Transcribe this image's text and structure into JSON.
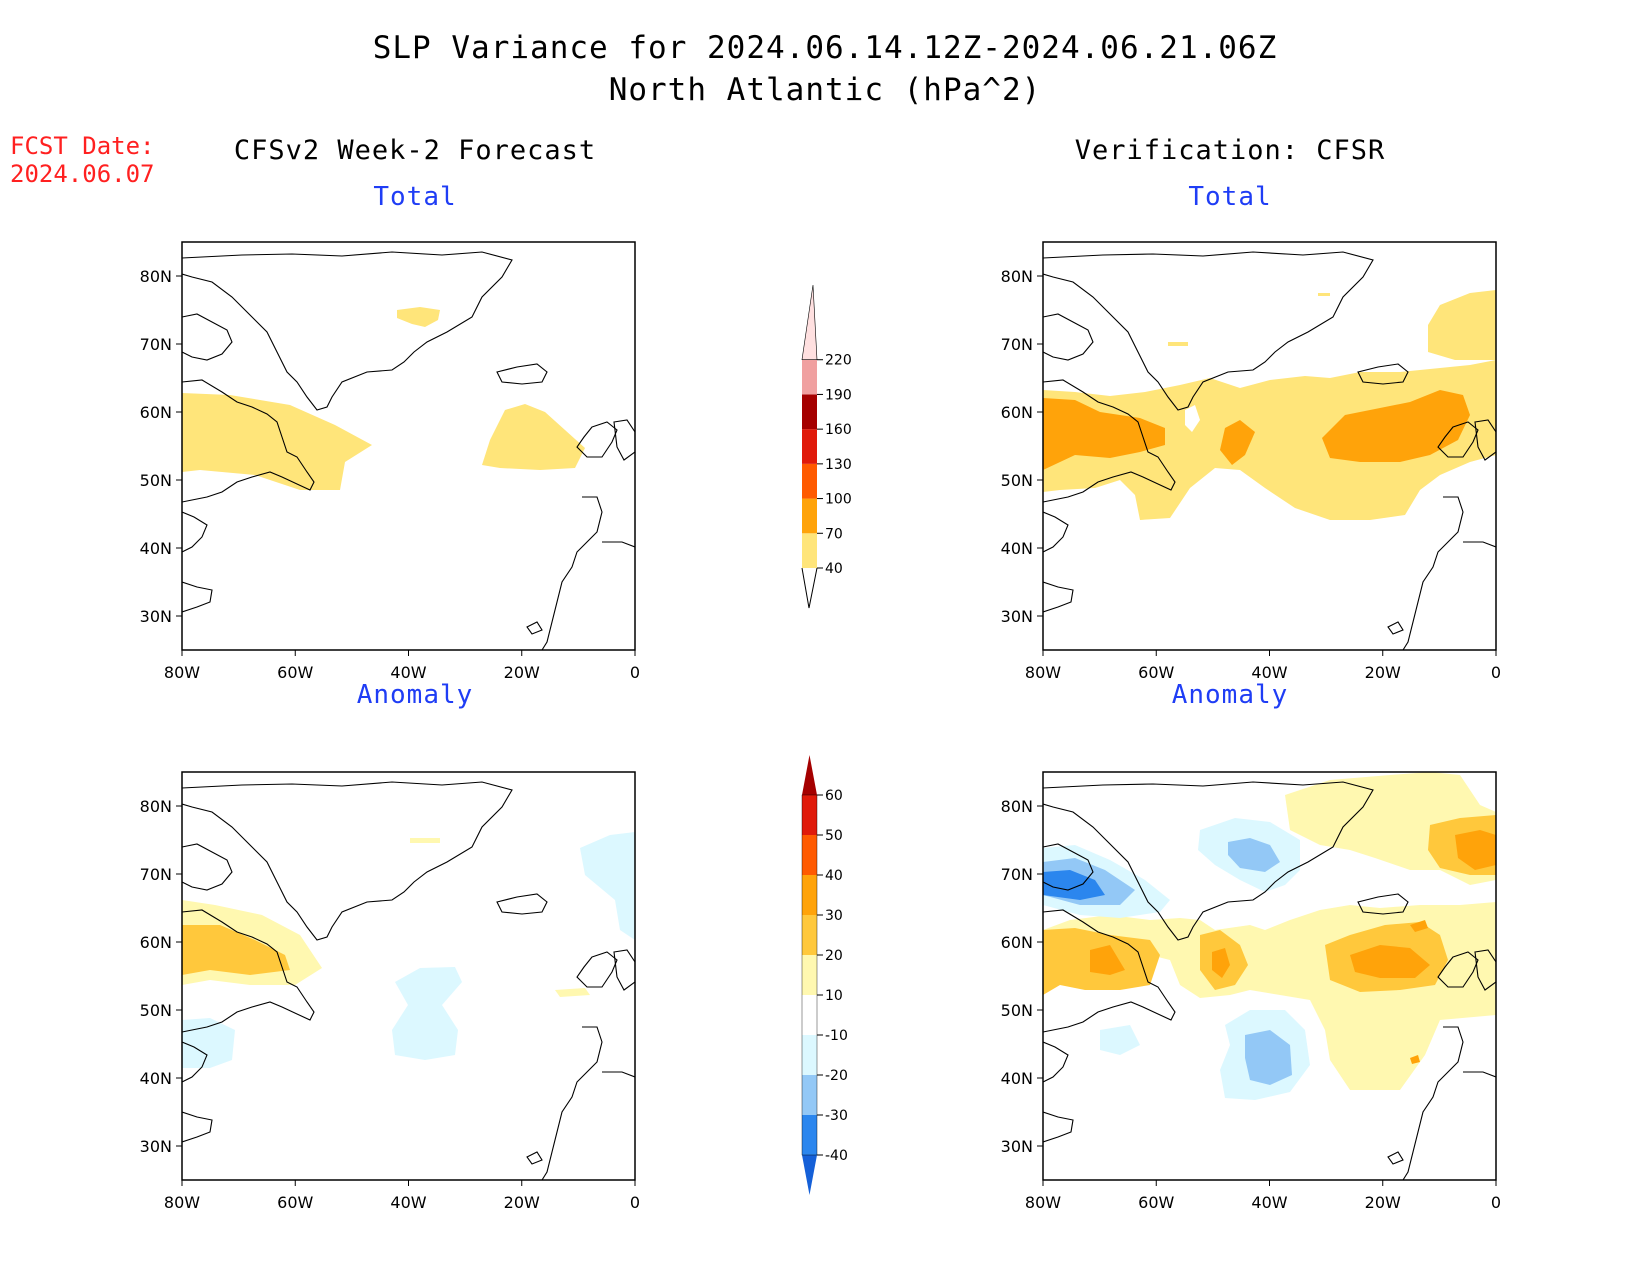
{
  "title": {
    "line1": "SLP Variance for 2024.06.14.12Z-2024.06.21.06Z",
    "line2": "North Atlantic (hPa^2)"
  },
  "fcst": {
    "label": "FCST Date:",
    "date": "2024.06.07"
  },
  "columns": {
    "left": "CFSv2 Week-2 Forecast",
    "right": "Verification: CFSR"
  },
  "panels": [
    {
      "id": "fcst-total",
      "subtitle": "Total"
    },
    {
      "id": "verif-total",
      "subtitle": "Total"
    },
    {
      "id": "fcst-anom",
      "subtitle": "Anomaly"
    },
    {
      "id": "verif-anom",
      "subtitle": "Anomaly"
    }
  ],
  "axes": {
    "lat_labels": [
      "80N",
      "70N",
      "60N",
      "50N",
      "40N",
      "30N"
    ],
    "lat_values": [
      80,
      70,
      60,
      50,
      40,
      30
    ],
    "lon_labels": [
      "80W",
      "60W",
      "40W",
      "20W",
      "0"
    ],
    "lon_values": [
      -80,
      -60,
      -40,
      -20,
      0
    ],
    "lat_range": [
      25,
      85
    ],
    "lon_range": [
      -80,
      0
    ]
  },
  "legend_total": {
    "levels": [
      "40",
      "70",
      "100",
      "130",
      "160",
      "190",
      "220"
    ],
    "colors": [
      "#ffe57a",
      "#ffa30a",
      "#ff5a00",
      "#e01a0a",
      "#a50000",
      "#f0a0a0",
      "#ffe0e0"
    ]
  },
  "legend_anomaly": {
    "levels": [
      "-40",
      "-30",
      "-20",
      "-10",
      "10",
      "20",
      "30",
      "40",
      "50",
      "60"
    ],
    "colors": [
      "#1560d8",
      "#2b86ee",
      "#93c8f6",
      "#dcf8ff",
      "#ffffff",
      "#fff8b0",
      "#ffc83c",
      "#ffa30a",
      "#ff5a00",
      "#e01a0a",
      "#a50000"
    ]
  },
  "colors": {
    "title": "#000000",
    "fcst_date": "#ff2020",
    "subtitle": "#1f3df5",
    "y40": "#ffe57a",
    "o70": "#ffa30a",
    "a10": "#fff8b0",
    "a20": "#ffc83c",
    "a30": "#ffa30a",
    "n10": "#dcf8ff",
    "n20": "#93c8f6",
    "n30": "#2b86ee"
  }
}
